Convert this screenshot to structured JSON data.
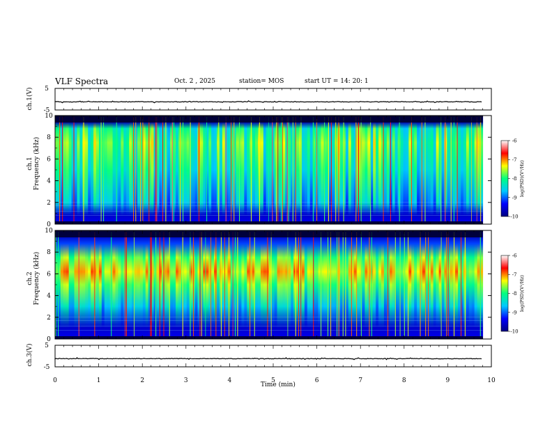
{
  "header": {
    "title": "VLF Spectra",
    "date": "Oct. 2 , 2025",
    "station": "station= MOS",
    "start": "start  UT =   14: 20: 1"
  },
  "chart_data": [
    {
      "id": "ch1-waveform",
      "type": "line",
      "ylabel": "ch.1(V)",
      "ylim": [
        -5,
        5
      ],
      "yticks": [
        5,
        -5
      ],
      "x": [
        0,
        10
      ],
      "baseline": -1.2
    },
    {
      "id": "ch1-spectrogram",
      "type": "heatmap",
      "ylabel": "ch.1",
      "ylabel2": "Frequency (kHz)",
      "ylim": [
        0,
        10
      ],
      "yticks": [
        0,
        2,
        4,
        6,
        8,
        10
      ],
      "xlim": [
        0,
        10
      ],
      "data_end_min": 9.8,
      "colorbar": {
        "label": "log(PSD)(V²/Hz)",
        "ticks": [
          -6,
          -7,
          -8,
          -9,
          -10
        ],
        "range": [
          -10,
          -6
        ]
      }
    },
    {
      "id": "ch2-spectrogram",
      "type": "heatmap",
      "ylabel": "ch.2",
      "ylabel2": "Frequency (kHz)",
      "ylim": [
        0,
        10
      ],
      "yticks": [
        0,
        2,
        4,
        6,
        8,
        10
      ],
      "xlim": [
        0,
        10
      ],
      "data_end_min": 9.8,
      "colorbar": {
        "label": "log(PSD)(V²/Hz)",
        "ticks": [
          -6,
          -7,
          -8,
          -9,
          -10
        ],
        "range": [
          -10,
          -6
        ]
      }
    },
    {
      "id": "ch3-waveform",
      "type": "line",
      "ylabel": "ch.3(V)",
      "ylim": [
        -5,
        5
      ],
      "yticks": [
        5,
        -5
      ],
      "x": [
        0,
        10
      ],
      "baseline": -1.2
    }
  ],
  "xaxis": {
    "label": "Time (min)",
    "ticks": [
      "0",
      "1",
      "2",
      "3",
      "4",
      "5",
      "6",
      "7",
      "8",
      "9",
      "10"
    ],
    "range": [
      0,
      10
    ]
  },
  "colors": {
    "colormap": [
      "#000080",
      "#0000ff",
      "#00c8ff",
      "#00ff80",
      "#ffff00",
      "#ff0000",
      "#ffffff"
    ]
  }
}
